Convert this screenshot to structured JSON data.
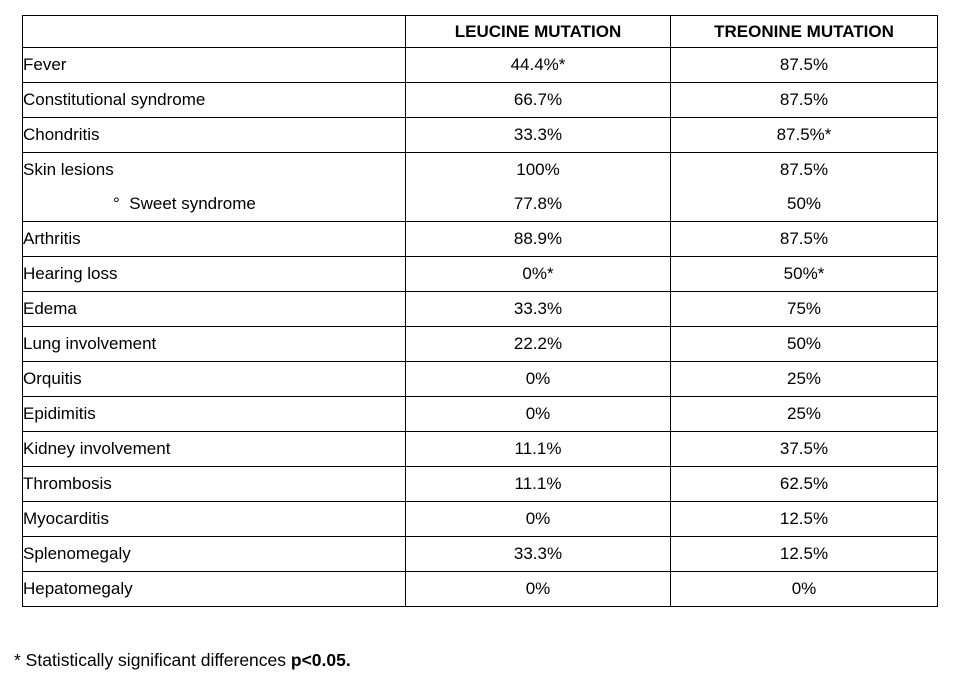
{
  "table": {
    "columns": [
      "",
      "LEUCINE MUTATION",
      "TREONINE MUTATION"
    ],
    "rows": [
      {
        "feature": "Fever",
        "leucine": "44.4%*",
        "treonine": "87.5%"
      },
      {
        "feature": "Constitutional syndrome",
        "leucine": "66.7%",
        "treonine": "87.5%"
      },
      {
        "feature": "Chondritis",
        "leucine": "33.3%",
        "treonine": "87.5%*"
      },
      {
        "feature": "Skin lesions",
        "leucine": "100%",
        "treonine": "87.5%",
        "merge_with_next": true
      },
      {
        "feature": "Sweet syndrome",
        "leucine": "77.8%",
        "treonine": "50%",
        "indent": true,
        "bullet": "°"
      },
      {
        "feature": "Arthritis",
        "leucine": "88.9%",
        "treonine": "87.5%"
      },
      {
        "feature": "Hearing loss",
        "leucine": "0%*",
        "treonine": "50%*"
      },
      {
        "feature": "Edema",
        "leucine": "33.3%",
        "treonine": "75%"
      },
      {
        "feature": "Lung involvement",
        "leucine": "22.2%",
        "treonine": "50%"
      },
      {
        "feature": "Orquitis",
        "leucine": "0%",
        "treonine": "25%"
      },
      {
        "feature": "Epidimitis",
        "leucine": "0%",
        "treonine": "25%"
      },
      {
        "feature": "Kidney involvement",
        "leucine": "11.1%",
        "treonine": "37.5%"
      },
      {
        "feature": "Thrombosis",
        "leucine": "11.1%",
        "treonine": "62.5%"
      },
      {
        "feature": "Myocarditis",
        "leucine": "0%",
        "treonine": "12.5%"
      },
      {
        "feature": "Splenomegaly",
        "leucine": "33.3%",
        "treonine": "12.5%"
      },
      {
        "feature": "Hepatomegaly",
        "leucine": "0%",
        "treonine": "0%"
      }
    ]
  },
  "footnote": {
    "prefix": "* Statistically significant differences ",
    "bold": "p<0.05."
  }
}
